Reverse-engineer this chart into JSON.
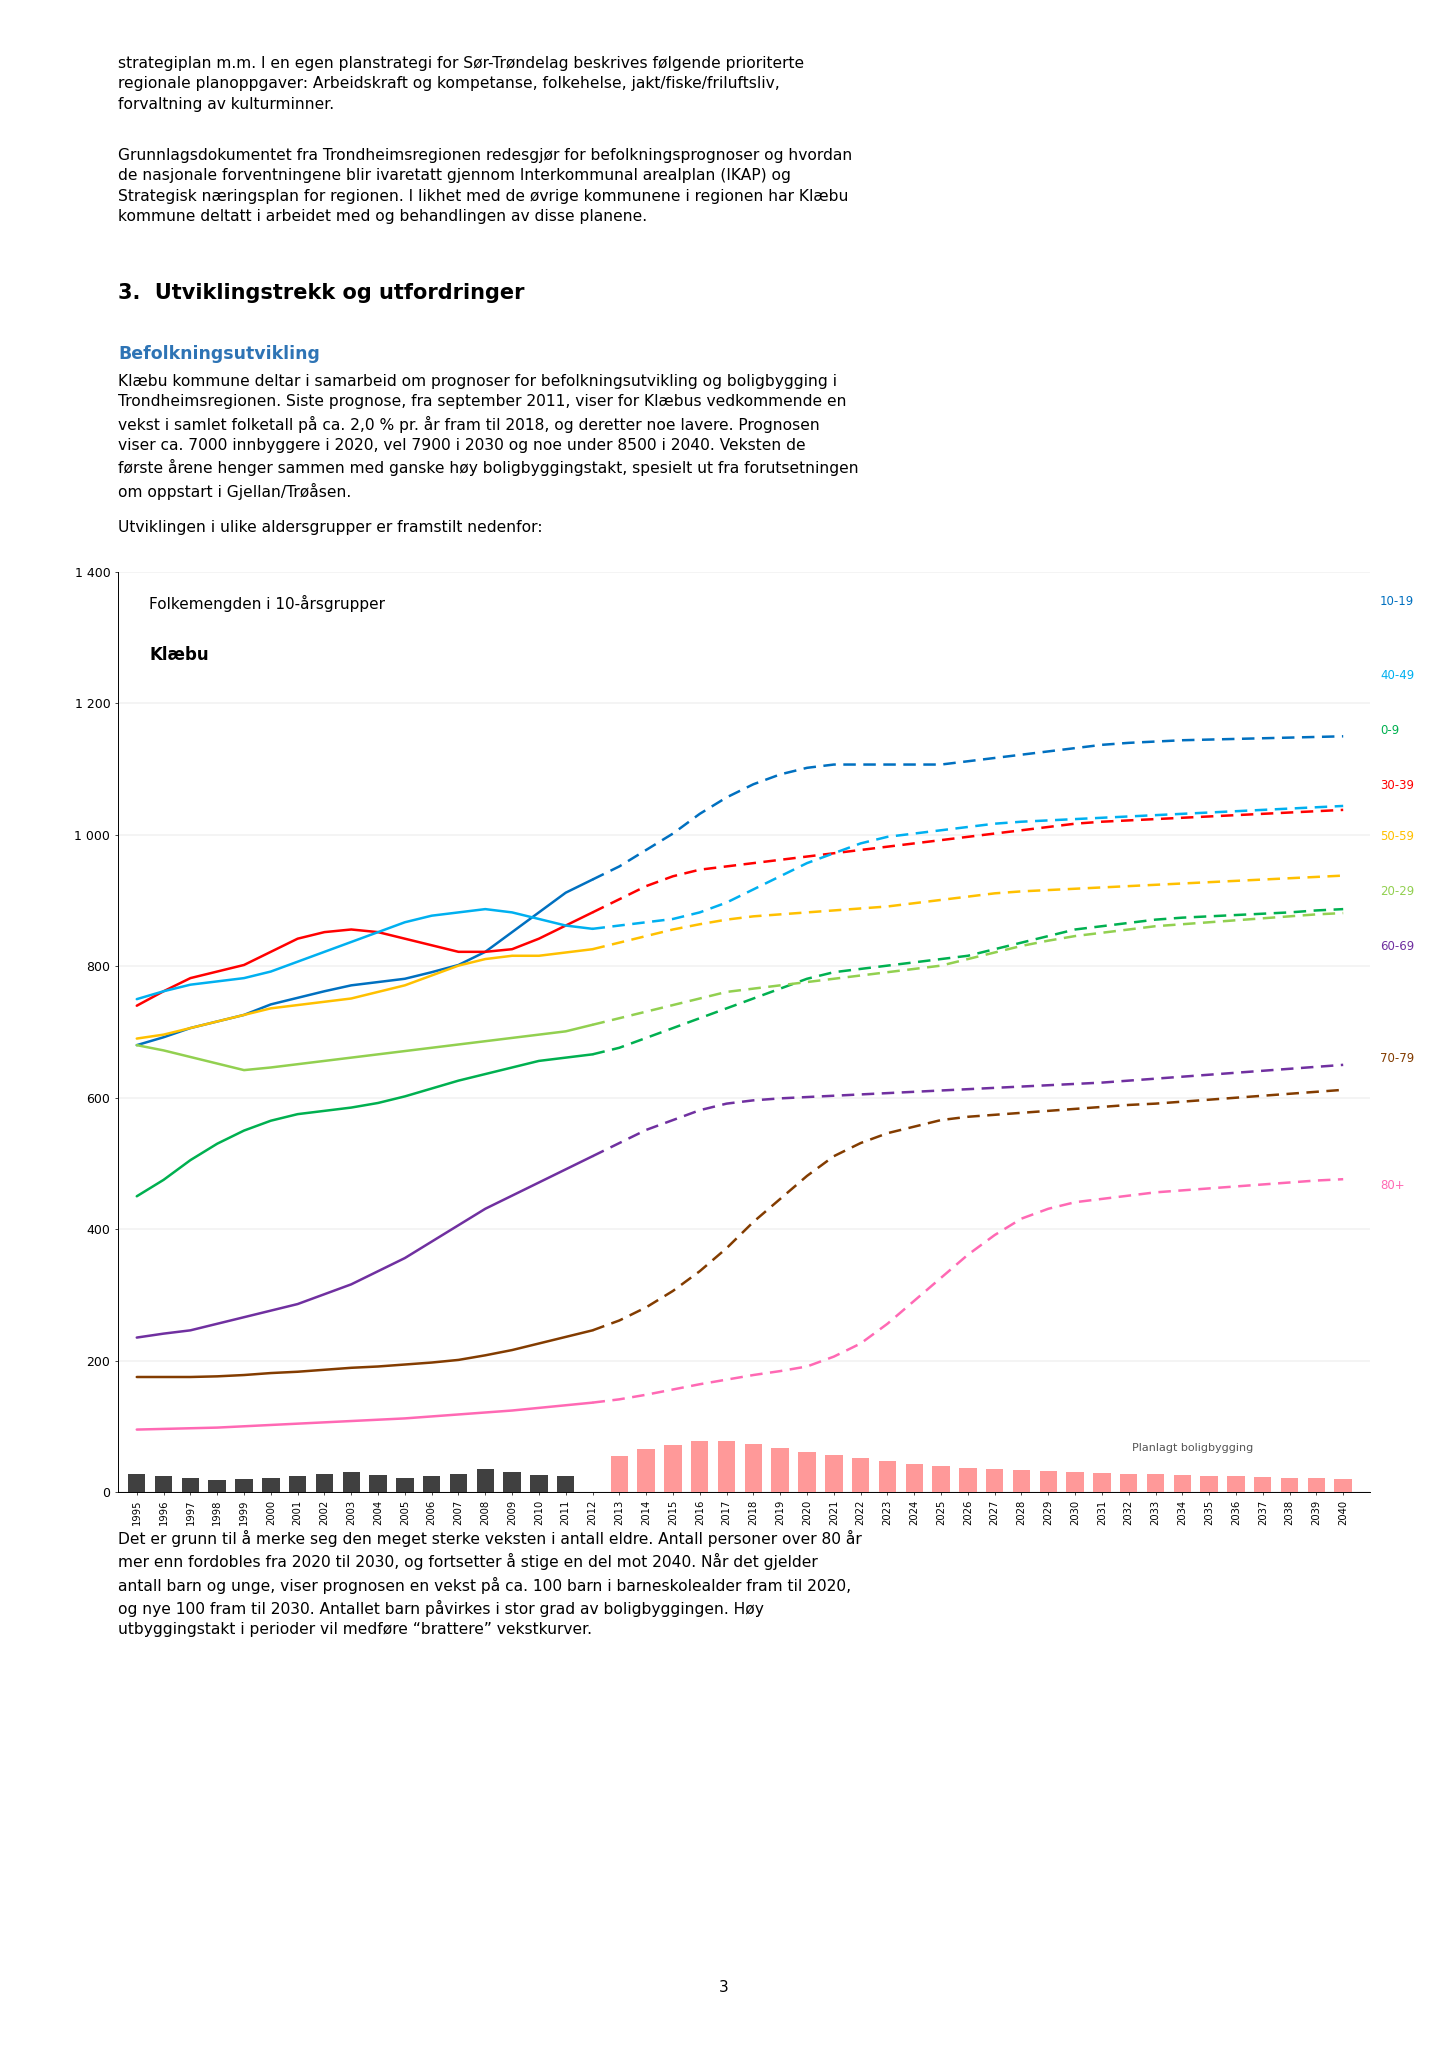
{
  "title_line1": "Folkemengden i 10-årsgrupper",
  "title_line2": "Klæbu",
  "section_heading": "3.  Utviklingstrekk og utfordringer",
  "subsection_heading": "Befolkningsutvikling",
  "intro_para1": "strategiplan m.m. I en egen planstrategi for Sør-Trøndelag beskrives følgende prioriterte\nregionale planoppgaver: Arbeidskraft og kompetanse, folkehelse, jakt/fiske/friluftsliv,\nforvaltning av kulturminner.",
  "intro_para2": "Grunnlagsdokumentet fra Trondheimsregionen redesgjør for befolkningsprognoser og hvordan\nde nasjonale forventningene blir ivaretatt gjennom Interkommunal arealplan (IKAP) og\nStrategisk næringsplan for regionen. I likhet med de øvrige kommunene i regionen har Klæbu\nkommune deltatt i arbeidet med og behandlingen av disse planene.",
  "para1": "Klæbu kommune deltar i samarbeid om prognoser for befolkningsutvikling og boligbygging i\nTrondheimsregionen. Siste prognose, fra september 2011, viser for Klæbus vedkommende en\nvekst i samlet folketall på ca. 2,0 % pr. år fram til 2018, og deretter noe lavere. Prognosen\nviser ca. 7000 innbyggere i 2020, vel 7900 i 2030 og noe under 8500 i 2040. Veksten de\nførste årene henger sammen med ganske høy boligbyggingstakt, spesielt ut fra forutsetningen\nom oppstart i Gjellan/Trøåsen.",
  "para2": "Utviklingen i ulike aldersgrupper er framstilt nedenfor:",
  "para_bottom": "Det er grunn til å merke seg den meget sterke veksten i antall eldre. Antall personer over 80 år\nmer enn fordobles fra 2020 til 2030, og fortsetter å stige en del mot 2040. Når det gjelder\nantall barn og unge, viser prognosen en vekst på ca. 100 barn i barneskolealder fram til 2020,\nog nye 100 fram til 2030. Antallet barn påvirkes i stor grad av boligbyggingen. Høy\nutbyggingstakt i perioder vil medføre “brattere” vekstkurver.",
  "page_number": "3",
  "yticks": [
    0,
    200,
    400,
    600,
    800,
    1000,
    1200,
    1400
  ],
  "years_historical": [
    1995,
    1996,
    1997,
    1998,
    1999,
    2000,
    2001,
    2002,
    2003,
    2004,
    2005,
    2006,
    2007,
    2008,
    2009,
    2010,
    2011,
    2012
  ],
  "years_forecast": [
    2012,
    2013,
    2014,
    2015,
    2016,
    2017,
    2018,
    2019,
    2020,
    2021,
    2022,
    2023,
    2024,
    2025,
    2026,
    2027,
    2028,
    2029,
    2030,
    2031,
    2032,
    2033,
    2034,
    2035,
    2036,
    2037,
    2038,
    2039,
    2040
  ],
  "colors": {
    "0-9": "#00b050",
    "10-19": "#0070c0",
    "20-29": "#92d050",
    "30-39": "#ff0000",
    "40-49": "#00b0f0",
    "50-59": "#ffc000",
    "60-69": "#7030a0",
    "70-79": "#833c00",
    "80+": "#ff69b4"
  },
  "hist_0_9": [
    450,
    475,
    505,
    530,
    550,
    565,
    575,
    580,
    585,
    592,
    602,
    614,
    626,
    636,
    646,
    656,
    661,
    666
  ],
  "hist_10_19": [
    680,
    692,
    706,
    716,
    726,
    742,
    752,
    762,
    771,
    776,
    781,
    791,
    802,
    822,
    852,
    882,
    912,
    932
  ],
  "hist_20_29": [
    680,
    672,
    662,
    652,
    642,
    646,
    651,
    656,
    661,
    666,
    671,
    676,
    681,
    686,
    691,
    696,
    701,
    711
  ],
  "hist_30_39": [
    740,
    762,
    782,
    792,
    802,
    822,
    842,
    852,
    856,
    852,
    842,
    832,
    822,
    822,
    826,
    842,
    862,
    882
  ],
  "hist_40_49": [
    750,
    762,
    772,
    777,
    782,
    792,
    807,
    822,
    837,
    852,
    867,
    877,
    882,
    887,
    882,
    872,
    862,
    857
  ],
  "hist_50_59": [
    690,
    696,
    706,
    716,
    726,
    736,
    741,
    746,
    751,
    761,
    771,
    786,
    801,
    811,
    816,
    816,
    821,
    826
  ],
  "hist_60_69": [
    235,
    241,
    246,
    256,
    266,
    276,
    286,
    301,
    316,
    336,
    356,
    381,
    406,
    431,
    451,
    471,
    491,
    511
  ],
  "hist_70_79": [
    175,
    175,
    175,
    176,
    178,
    181,
    183,
    186,
    189,
    191,
    194,
    197,
    201,
    208,
    216,
    226,
    236,
    246
  ],
  "hist_80_plus": [
    95,
    96,
    97,
    98,
    100,
    102,
    104,
    106,
    108,
    110,
    112,
    115,
    118,
    121,
    124,
    128,
    132,
    136
  ],
  "fore_0_9": [
    666,
    676,
    691,
    706,
    721,
    736,
    751,
    766,
    781,
    791,
    796,
    801,
    806,
    811,
    816,
    826,
    836,
    846,
    856,
    861,
    866,
    871,
    874,
    876,
    878,
    880,
    882,
    885,
    887
  ],
  "fore_10_19": [
    932,
    952,
    977,
    1002,
    1032,
    1057,
    1077,
    1092,
    1102,
    1107,
    1107,
    1107,
    1107,
    1107,
    1112,
    1117,
    1122,
    1127,
    1132,
    1137,
    1140,
    1142,
    1144,
    1145,
    1146,
    1147,
    1148,
    1149,
    1150
  ],
  "fore_20_29": [
    711,
    721,
    731,
    741,
    751,
    761,
    766,
    771,
    776,
    781,
    786,
    791,
    796,
    801,
    811,
    821,
    831,
    839,
    846,
    851,
    856,
    861,
    864,
    867,
    870,
    873,
    876,
    879,
    881
  ],
  "fore_30_39": [
    882,
    902,
    922,
    937,
    947,
    952,
    957,
    962,
    967,
    972,
    977,
    982,
    987,
    992,
    997,
    1002,
    1007,
    1012,
    1017,
    1020,
    1022,
    1024,
    1026,
    1028,
    1030,
    1032,
    1034,
    1036,
    1038
  ],
  "fore_40_49": [
    857,
    862,
    867,
    872,
    882,
    897,
    917,
    937,
    957,
    972,
    987,
    997,
    1002,
    1007,
    1012,
    1017,
    1020,
    1022,
    1024,
    1026,
    1028,
    1030,
    1032,
    1034,
    1036,
    1038,
    1040,
    1042,
    1044
  ],
  "fore_50_59": [
    826,
    836,
    846,
    856,
    864,
    871,
    876,
    879,
    882,
    885,
    888,
    891,
    896,
    901,
    906,
    911,
    914,
    916,
    918,
    920,
    922,
    924,
    926,
    928,
    930,
    932,
    934,
    936,
    938
  ],
  "fore_60_69": [
    511,
    531,
    551,
    566,
    581,
    591,
    596,
    599,
    601,
    603,
    605,
    607,
    609,
    611,
    613,
    615,
    617,
    619,
    621,
    623,
    626,
    629,
    632,
    635,
    638,
    641,
    644,
    647,
    650
  ],
  "fore_70_79": [
    246,
    261,
    281,
    306,
    336,
    371,
    411,
    446,
    481,
    511,
    531,
    546,
    556,
    566,
    571,
    574,
    577,
    580,
    583,
    586,
    589,
    591,
    594,
    597,
    600,
    603,
    606,
    609,
    612
  ],
  "fore_80_plus": [
    136,
    141,
    148,
    156,
    164,
    171,
    178,
    184,
    191,
    206,
    226,
    256,
    291,
    326,
    361,
    391,
    416,
    431,
    441,
    446,
    451,
    456,
    459,
    462,
    465,
    468,
    471,
    474,
    476
  ],
  "bar_years_hist": [
    1995,
    1996,
    1997,
    1998,
    1999,
    2000,
    2001,
    2002,
    2003,
    2004,
    2005,
    2006,
    2007,
    2008,
    2009,
    2010,
    2011
  ],
  "bar_heights_hist": [
    28,
    25,
    22,
    18,
    20,
    22,
    25,
    28,
    30,
    26,
    22,
    25,
    28,
    35,
    30,
    26,
    24
  ],
  "bar_years_fore": [
    2013,
    2014,
    2015,
    2016,
    2017,
    2018,
    2019,
    2020,
    2021,
    2022,
    2023,
    2024,
    2025,
    2026,
    2027,
    2028,
    2029,
    2030,
    2031,
    2032,
    2033,
    2034,
    2035,
    2036,
    2037,
    2038,
    2039,
    2040
  ],
  "bar_heights_fore": [
    55,
    65,
    72,
    78,
    78,
    73,
    67,
    61,
    57,
    52,
    47,
    42,
    40,
    37,
    35,
    33,
    32,
    31,
    29,
    28,
    27,
    26,
    25,
    24,
    23,
    22,
    21,
    20
  ],
  "legend_right_order": [
    "10-19",
    "40-49",
    "0-9",
    "30-39",
    "50-59",
    "20-29",
    "60-69",
    "70-79",
    "80+"
  ],
  "background_color": "#ffffff"
}
